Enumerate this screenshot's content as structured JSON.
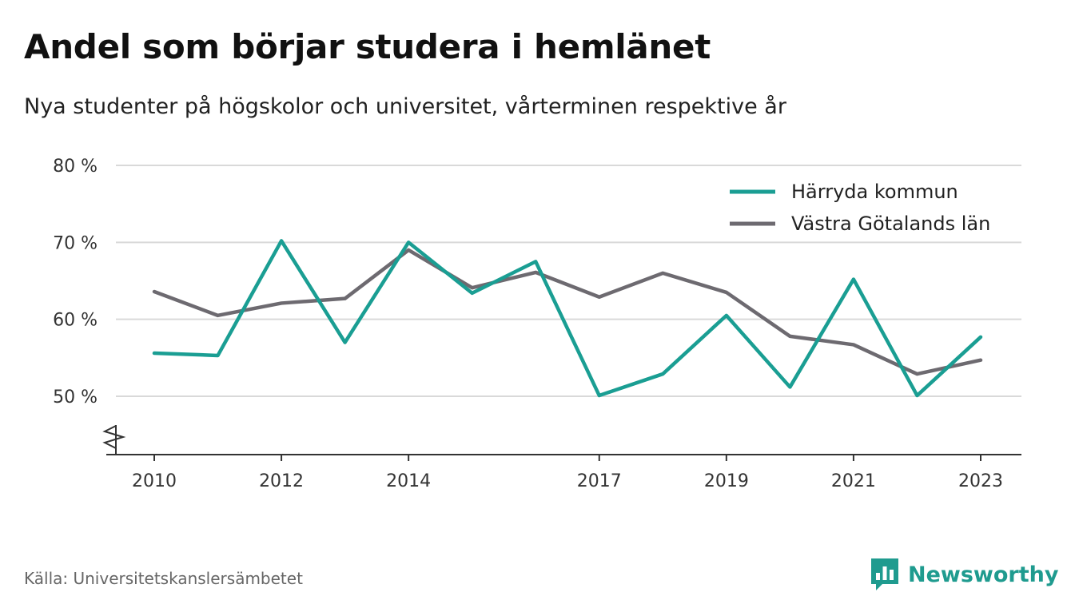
{
  "header": {
    "title": "Andel som börjar studera i hemlänet",
    "subtitle": "Nya studenter på högskolor och universitet, vårterminen respektive år"
  },
  "footer": {
    "source": "Källa: Universitetskanslersämbetet",
    "brand": "Newsworthy",
    "brand_icon": "bar-chart-speech-bubble-icon",
    "brand_color": "#1f9b8f"
  },
  "chart_data": {
    "type": "line",
    "x": [
      2010,
      2011,
      2012,
      2013,
      2014,
      2015,
      2016,
      2017,
      2018,
      2019,
      2020,
      2021,
      2022,
      2023
    ],
    "x_tick_labels": [
      "2010",
      "2012",
      "2014",
      "2017",
      "2019",
      "2021",
      "2023"
    ],
    "y_tick_labels": [
      "50 %",
      "60 %",
      "70 %",
      "80 %"
    ],
    "y_ticks": [
      50,
      60,
      70,
      80
    ],
    "ylim": [
      50,
      80
    ],
    "y_axis_break": true,
    "grid": "horizontal",
    "legend_position": "top-right",
    "series": [
      {
        "name": "Härryda kommun",
        "color": "#1a9e93",
        "values": [
          55.6,
          55.3,
          70.2,
          57.0,
          70.0,
          63.4,
          67.5,
          50.1,
          52.9,
          60.5,
          51.2,
          65.2,
          50.1,
          57.7
        ]
      },
      {
        "name": "Västra Götalands län",
        "color": "#6d6a70",
        "values": [
          63.6,
          60.5,
          62.1,
          62.7,
          69.0,
          64.1,
          66.1,
          62.9,
          66.0,
          63.5,
          57.8,
          56.7,
          52.9,
          54.7
        ]
      }
    ]
  }
}
